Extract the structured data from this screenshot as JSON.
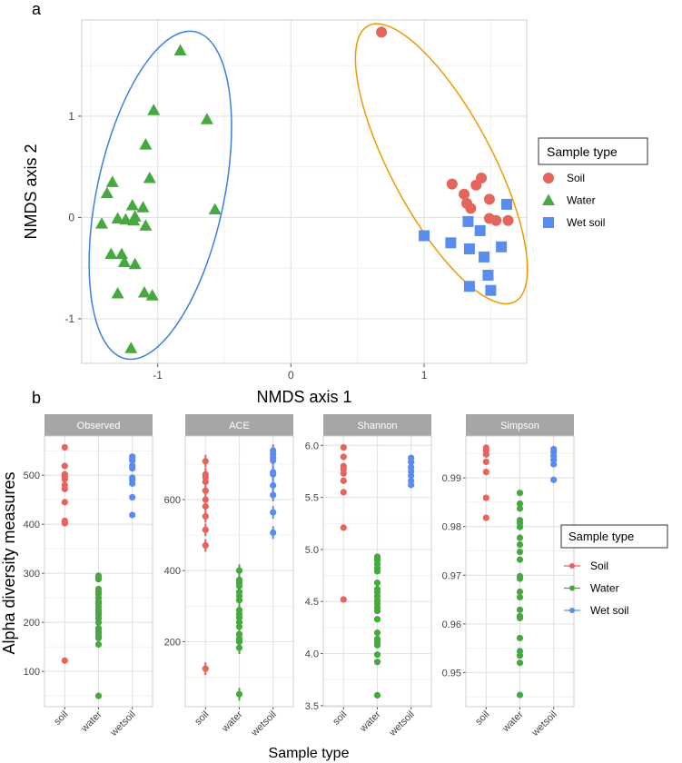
{
  "colors": {
    "soil": "#e5645c",
    "water": "#46a83e",
    "wetsoil": "#5a8cf0",
    "ellipse_water": "#3d7fe0",
    "ellipse_soil": "#f09a00"
  },
  "chart_data": [
    {
      "panel_label": "a",
      "type": "scatter",
      "xlabel": "NMDS axis 1",
      "ylabel": "NMDS axis 2",
      "xlim": [
        -1.57,
        1.77
      ],
      "ylim": [
        -1.44,
        1.95
      ],
      "xticks": [
        {
          "v": -1,
          "label": "-1"
        },
        {
          "v": 0,
          "label": "0"
        },
        {
          "v": 1,
          "label": "1"
        }
      ],
      "yticks": [
        {
          "v": -1,
          "label": "-1"
        },
        {
          "v": 0,
          "label": "0"
        },
        {
          "v": 1,
          "label": "1"
        }
      ],
      "grid": true,
      "legend": {
        "title": "Sample type",
        "position": "right",
        "entries": [
          {
            "key": "soil",
            "label": "Soil",
            "shape": "circle"
          },
          {
            "key": "water",
            "label": "Water",
            "shape": "triangle"
          },
          {
            "key": "wetsoil",
            "label": "Wet soil",
            "shape": "square"
          }
        ]
      },
      "ellipses": [
        {
          "key": "ellipse_water",
          "center": [
            -0.98,
            0.22
          ]
        },
        {
          "key": "ellipse_soil",
          "center": [
            1.13,
            0.53
          ]
        }
      ],
      "series": [
        {
          "name": "Water",
          "key": "water",
          "shape": "triangle",
          "points": [
            [
              -0.83,
              1.65
            ],
            [
              -1.03,
              1.06
            ],
            [
              -0.63,
              0.97
            ],
            [
              -1.09,
              0.72
            ],
            [
              -1.06,
              0.39
            ],
            [
              -1.34,
              0.35
            ],
            [
              -1.38,
              0.24
            ],
            [
              -1.19,
              0.12
            ],
            [
              -1.11,
              0.1
            ],
            [
              -0.57,
              0.08
            ],
            [
              -1.3,
              -0.01
            ],
            [
              -1.24,
              -0.02
            ],
            [
              -1.17,
              0.01
            ],
            [
              -1.18,
              -0.03
            ],
            [
              -1.42,
              -0.06
            ],
            [
              -1.09,
              -0.08
            ],
            [
              -1.35,
              -0.36
            ],
            [
              -1.27,
              -0.36
            ],
            [
              -1.25,
              -0.44
            ],
            [
              -1.17,
              -0.46
            ],
            [
              -1.3,
              -0.75
            ],
            [
              -1.1,
              -0.74
            ],
            [
              -1.04,
              -0.77
            ],
            [
              -1.2,
              -1.29
            ]
          ]
        },
        {
          "name": "Soil",
          "key": "soil",
          "shape": "circle",
          "points": [
            [
              0.68,
              1.83
            ],
            [
              1.21,
              0.33
            ],
            [
              1.43,
              0.39
            ],
            [
              1.39,
              0.32
            ],
            [
              1.3,
              0.23
            ],
            [
              1.49,
              0.18
            ],
            [
              1.32,
              0.14
            ],
            [
              1.35,
              0.09
            ],
            [
              1.49,
              -0.01
            ],
            [
              1.54,
              -0.03
            ],
            [
              1.63,
              -0.03
            ]
          ]
        },
        {
          "name": "Wet soil",
          "key": "wetsoil",
          "shape": "square",
          "points": [
            [
              1.62,
              0.13
            ],
            [
              1.33,
              -0.04
            ],
            [
              1.42,
              -0.13
            ],
            [
              1.0,
              -0.18
            ],
            [
              1.2,
              -0.25
            ],
            [
              1.34,
              -0.31
            ],
            [
              1.58,
              -0.29
            ],
            [
              1.45,
              -0.39
            ],
            [
              1.48,
              -0.57
            ],
            [
              1.34,
              -0.68
            ],
            [
              1.5,
              -0.72
            ]
          ]
        }
      ]
    },
    {
      "panel_label": "b",
      "type": "scatter",
      "xlabel": "Sample type",
      "ylabel": "Alpha diversity measures",
      "categories": [
        "soil",
        "water",
        "wetsoil"
      ],
      "legend": {
        "title": "Sample type",
        "position": "right",
        "entries": [
          {
            "key": "soil",
            "label": "Soil"
          },
          {
            "key": "water",
            "label": "Water"
          },
          {
            "key": "wetsoil",
            "label": "Wet soil"
          }
        ]
      },
      "facets": [
        {
          "title": "Observed",
          "ylim": [
            28,
            580
          ],
          "errorbars": false,
          "yticks": [
            {
              "v": 100,
              "label": "100"
            },
            {
              "v": 200,
              "label": "200"
            },
            {
              "v": 300,
              "label": "300"
            },
            {
              "v": 400,
              "label": "400"
            },
            {
              "v": 500,
              "label": "500"
            }
          ],
          "values": {
            "soil": [
              557,
              519,
              502,
              497,
              492,
              480,
              472,
              445,
              407,
              404,
              402,
              122
            ],
            "water": [
              295,
              292,
              288,
              268,
              262,
              258,
              250,
              242,
              238,
              232,
              225,
              220,
              215,
              208,
              200,
              188,
              182,
              178,
              172,
              168,
              155,
              50
            ],
            "wetsoil": [
              538,
              534,
              530,
              520,
              514,
              495,
              490,
              483,
              455,
              419
            ]
          }
        },
        {
          "title": "ACE",
          "ylim": [
            17,
            779
          ],
          "errorbars": true,
          "yticks": [
            {
              "v": 200,
              "label": "200"
            },
            {
              "v": 400,
              "label": "400"
            },
            {
              "v": 600,
              "label": "600"
            }
          ],
          "values": {
            "soil": [
              708,
              671,
              663,
              650,
              625,
              600,
              581,
              553,
              515,
              471,
              124
            ],
            "water": [
              400,
              374,
              366,
              357,
              340,
              329,
              317,
              289,
              278,
              268,
              255,
              242,
              221,
              208,
              200,
              183,
              52
            ],
            "wetsoil": [
              738,
              728,
              718,
              710,
              677,
              671,
              640,
              613,
              564,
              507
            ]
          }
        },
        {
          "title": "Shannon",
          "ylim": [
            3.49,
            6.09
          ],
          "errorbars": false,
          "yticks": [
            {
              "v": 3.5,
              "label": "3.5"
            },
            {
              "v": 4.0,
              "label": "4.0"
            },
            {
              "v": 4.5,
              "label": "4.5"
            },
            {
              "v": 5.0,
              "label": "5.0"
            },
            {
              "v": 5.5,
              "label": "5.5"
            },
            {
              "v": 6.0,
              "label": "6.0"
            }
          ],
          "values": {
            "soil": [
              5.98,
              5.89,
              5.8,
              5.77,
              5.73,
              5.66,
              5.55,
              5.21,
              4.52
            ],
            "water": [
              4.93,
              4.9,
              4.86,
              4.82,
              4.79,
              4.68,
              4.62,
              4.59,
              4.55,
              4.51,
              4.48,
              4.44,
              4.41,
              4.33,
              4.2,
              4.14,
              4.11,
              4.08,
              3.99,
              3.92,
              3.6
            ],
            "wetsoil": [
              5.88,
              5.84,
              5.79,
              5.75,
              5.71,
              5.66,
              5.62
            ]
          }
        },
        {
          "title": "Simpson",
          "ylim": [
            0.943,
            0.9986
          ],
          "errorbars": false,
          "yticks": [
            {
              "v": 0.95,
              "label": "0.95"
            },
            {
              "v": 0.96,
              "label": "0.96"
            },
            {
              "v": 0.97,
              "label": "0.97"
            },
            {
              "v": 0.98,
              "label": "0.98"
            },
            {
              "v": 0.99,
              "label": "0.99"
            }
          ],
          "values": {
            "soil": [
              0.9962,
              0.9956,
              0.9948,
              0.9933,
              0.9912,
              0.9859,
              0.9818
            ],
            "water": [
              0.9869,
              0.9847,
              0.9837,
              0.9813,
              0.9807,
              0.9799,
              0.9777,
              0.9763,
              0.9748,
              0.9732,
              0.9698,
              0.9693,
              0.9666,
              0.9655,
              0.9629,
              0.9616,
              0.9612,
              0.9571,
              0.9544,
              0.9535,
              0.952,
              0.9454
            ],
            "wetsoil": [
              0.9959,
              0.9953,
              0.9945,
              0.9937,
              0.9928,
              0.9896
            ]
          }
        }
      ]
    }
  ]
}
